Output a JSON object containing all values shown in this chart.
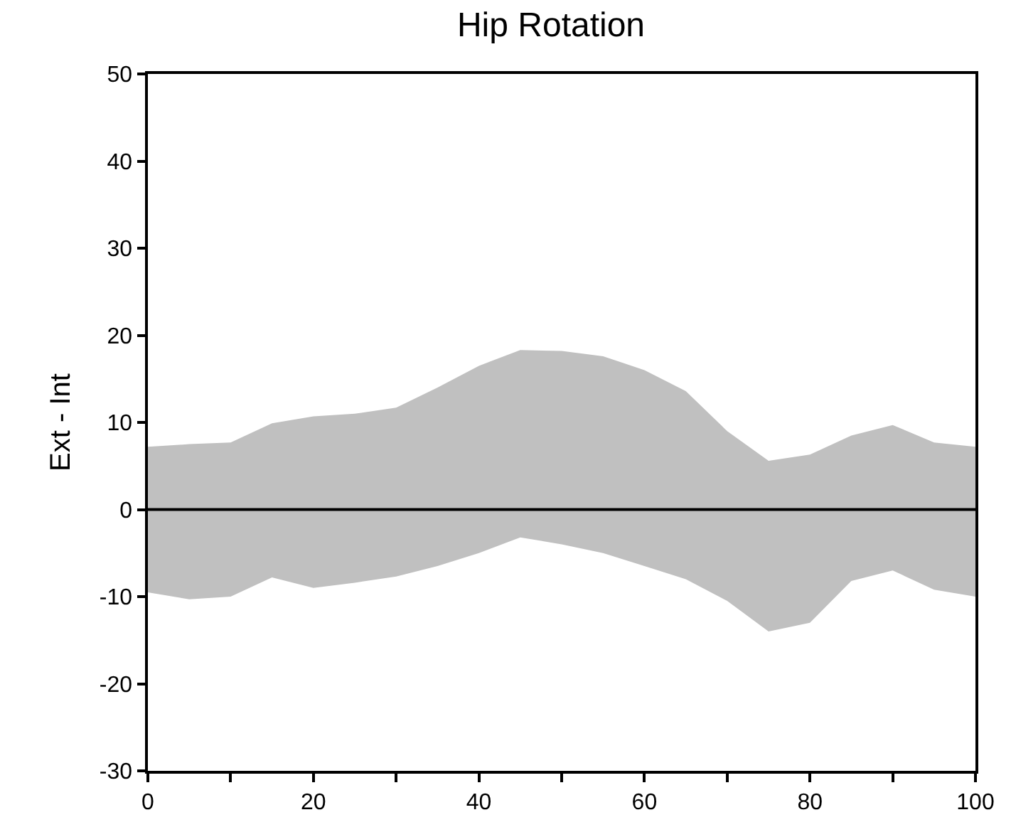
{
  "chart_data": {
    "type": "line",
    "title": "Hip Rotation",
    "ylabel": "Ext - Int",
    "x": [
      0,
      5,
      10,
      15,
      20,
      25,
      30,
      35,
      40,
      45,
      50,
      55,
      60,
      65,
      70,
      75,
      80,
      85,
      90,
      95,
      100
    ],
    "series": [
      {
        "color": "#000000",
        "values": [
          0,
          0,
          0,
          0,
          0,
          0,
          0,
          0,
          0,
          0,
          0,
          0,
          0,
          0,
          0,
          0,
          0,
          0,
          0,
          0,
          0
        ],
        "upper": [
          7.2,
          7.5,
          7.7,
          9.9,
          10.7,
          11,
          11.7,
          14,
          16.5,
          18.3,
          18.2,
          17.6,
          16,
          13.6,
          9,
          5.6,
          6.3,
          8.5,
          9.7,
          7.7,
          7.2
        ],
        "lower": [
          -9.5,
          -10.3,
          -10,
          -7.8,
          -9,
          -8.4,
          -7.7,
          -6.5,
          -5,
          -3.2,
          -4,
          -5,
          -6.5,
          -8,
          -10.5,
          -14,
          -13,
          -8.2,
          -7,
          -9.2,
          -10
        ]
      }
    ],
    "xlim": [
      0,
      100
    ],
    "ylim": [
      -30,
      50
    ],
    "xticks": [
      0,
      {
        "value": 10,
        "label": null
      },
      20,
      {
        "value": 30,
        "label": null
      },
      40,
      {
        "value": 50,
        "label": null
      },
      60,
      {
        "value": 70,
        "label": null
      },
      80,
      {
        "value": 90,
        "label": null
      },
      100
    ],
    "yticks": [
      -30,
      -20,
      -10,
      0,
      10,
      20,
      30,
      40,
      50
    ]
  }
}
